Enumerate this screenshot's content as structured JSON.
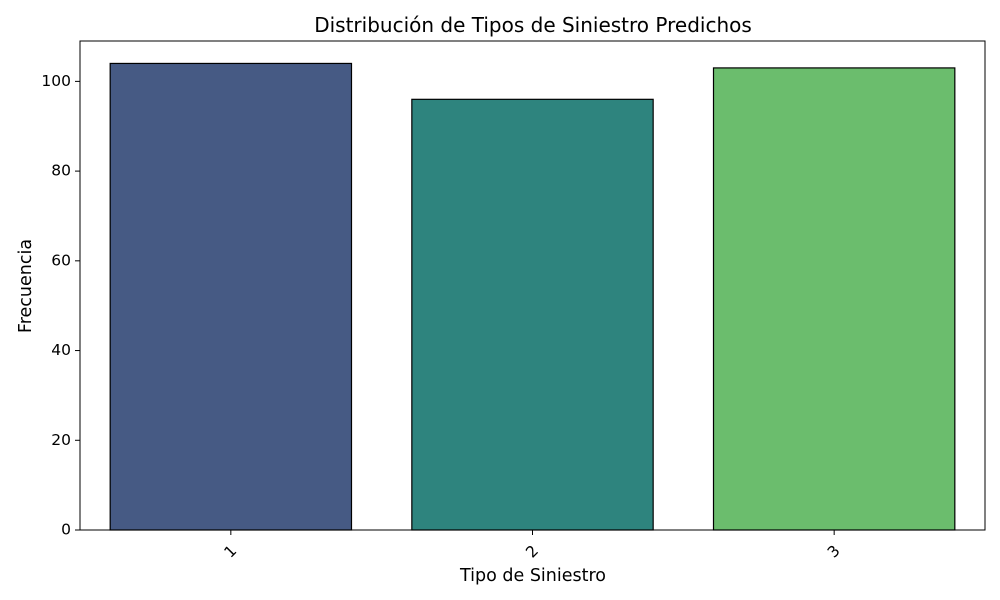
{
  "chart_data": {
    "type": "bar",
    "title": "Distribución de Tipos de Siniestro Predichos",
    "xlabel": "Tipo de Siniestro",
    "ylabel": "Frecuencia",
    "categories": [
      "1",
      "2",
      "3"
    ],
    "values": [
      104,
      96,
      103
    ],
    "colors": [
      "#465a84",
      "#2e847e",
      "#6bbd6d"
    ],
    "edge_color": "#000000",
    "ylim": [
      0,
      109
    ],
    "yticks": [
      0,
      20,
      40,
      60,
      80,
      100
    ],
    "ytick_labels": [
      "0",
      "20",
      "40",
      "60",
      "80",
      "100"
    ],
    "xtick_rotation": -45,
    "grid": false,
    "legend": "none"
  }
}
